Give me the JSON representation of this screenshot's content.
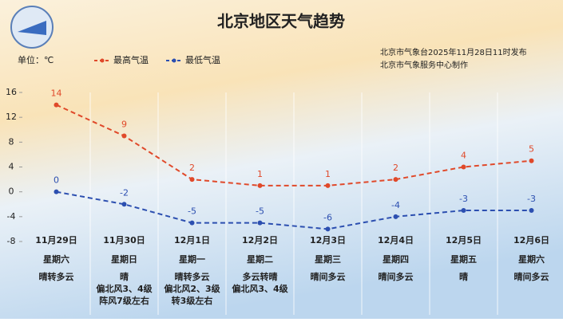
{
  "chart_data": {
    "type": "line",
    "title": "北京地区天气趋势",
    "unit_label": "单位：℃",
    "source": [
      "北京市气象台2025年11月28日11时发布",
      "北京市气象服务中心制作"
    ],
    "categories": [
      "11月29日",
      "11月30日",
      "12月1日",
      "12月2日",
      "12月3日",
      "12月4日",
      "12月5日",
      "12月6日"
    ],
    "weekdays": [
      "星期六",
      "星期日",
      "星期一",
      "星期二",
      "星期三",
      "星期四",
      "星期五",
      "星期六"
    ],
    "weather": [
      [
        "晴转多云"
      ],
      [
        "晴",
        "偏北风3、4级",
        "阵风7级左右"
      ],
      [
        "晴转多云",
        "偏北风2、3级",
        "转3级左右"
      ],
      [
        "多云转晴",
        "偏北风3、4级"
      ],
      [
        "晴间多云"
      ],
      [
        "晴间多云"
      ],
      [
        "晴"
      ],
      [
        "晴间多云"
      ]
    ],
    "series": [
      {
        "name": "最高气温",
        "color": "#e0492a",
        "values": [
          14,
          9,
          2,
          1,
          1,
          2,
          4,
          5
        ]
      },
      {
        "name": "最低气温",
        "color": "#2c4fb0",
        "values": [
          0,
          -2,
          -5,
          -5,
          -6,
          -4,
          -3,
          -3
        ]
      }
    ],
    "ylim": [
      -8,
      16
    ],
    "yticks": [
      -8,
      -4,
      0,
      4,
      8,
      12,
      16
    ]
  }
}
